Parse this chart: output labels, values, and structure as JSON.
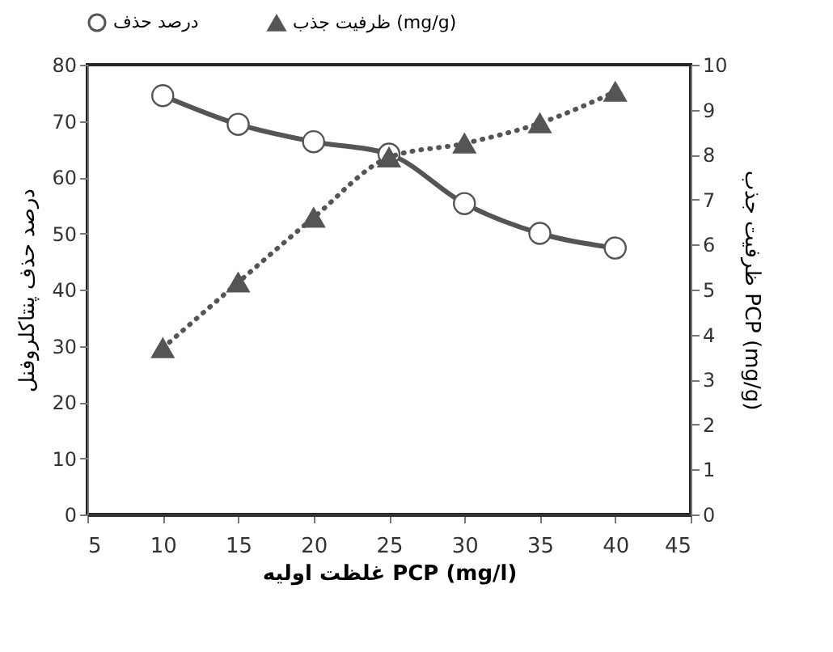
{
  "chart_data": {
    "type": "line",
    "xlabel": "غلظت اولیه PCP (mg/l)",
    "ylabel": "درصد حذف پنتاکلروفنل",
    "y2label": "ظرفیت جذب PCP (mg/g)",
    "x": [
      10,
      15,
      20,
      25,
      30,
      35,
      40
    ],
    "series": [
      {
        "name": "درصد حذف",
        "color": "#555555",
        "values": [
          74.5,
          69.4,
          66.3,
          64.1,
          55.3,
          50,
          47.4
        ],
        "marker": "circle",
        "line_style": "solid"
      },
      {
        "name": "ظرفیت جذب (mg/g)",
        "color": "#555555",
        "values": [
          3.7,
          5.16,
          6.6,
          7.94,
          8.25,
          8.7,
          9.4
        ],
        "marker": "triangle",
        "line_style": "dotted",
        "axis": "y2"
      }
    ],
    "xlim": [
      5,
      45
    ],
    "xticks": [
      5,
      10,
      15,
      20,
      25,
      30,
      35,
      40,
      45
    ],
    "ylim": [
      0,
      80
    ],
    "yticks": [
      0,
      10,
      20,
      30,
      40,
      50,
      60,
      70,
      80
    ],
    "y2lim": [
      0,
      10
    ],
    "y2ticks": [
      0,
      1,
      2,
      3,
      4,
      5,
      6,
      7,
      8,
      9,
      10
    ],
    "grid": false,
    "legend": "top"
  }
}
